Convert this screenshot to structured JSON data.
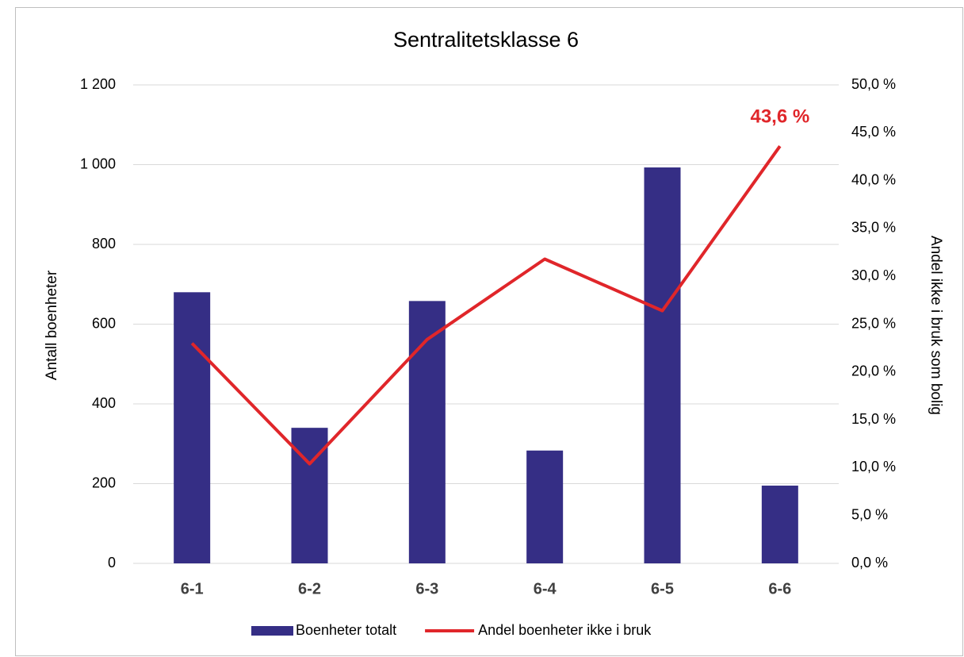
{
  "chart_data": {
    "type": "combo",
    "title": "Sentralitetsklasse 6",
    "categories": [
      "6-1",
      "6-2",
      "6-3",
      "6-4",
      "6-5",
      "6-6"
    ],
    "series": [
      {
        "name": "Boenheter totalt",
        "type": "bar",
        "color": "#352e85",
        "values": [
          680,
          340,
          658,
          283,
          993,
          195
        ]
      },
      {
        "name": "Andel boenheter ikke i bruk",
        "type": "line",
        "axis": "y2",
        "color": "#e0262a",
        "values": [
          23.0,
          10.4,
          23.4,
          31.8,
          26.4,
          43.6
        ],
        "value_labels": [
          null,
          null,
          null,
          null,
          null,
          "43,6 %"
        ]
      }
    ],
    "ylabel": "Antall boenheter",
    "y2label": "Andel ikke i bruk som bolig",
    "ylim": [
      0,
      1200
    ],
    "yticks": [
      0,
      200,
      400,
      600,
      800,
      {
        "value": 1000,
        "label": "1 000"
      },
      {
        "value": 1200,
        "label": "1 200"
      }
    ],
    "y2lim": [
      0,
      50
    ],
    "y2ticks": [
      {
        "value": 0,
        "label": "0,0 %"
      },
      {
        "value": 5,
        "label": "5,0 %"
      },
      {
        "value": 10,
        "label": "10,0 %"
      },
      {
        "value": 15,
        "label": "15,0 %"
      },
      {
        "value": 20,
        "label": "20,0 %"
      },
      {
        "value": 25,
        "label": "25,0 %"
      },
      {
        "value": 30,
        "label": "30,0 %"
      },
      {
        "value": 35,
        "label": "35,0 %"
      },
      {
        "value": 40,
        "label": "40,0 %"
      },
      {
        "value": 45,
        "label": "45,0 %"
      },
      {
        "value": 50,
        "label": "50,0 %"
      }
    ],
    "grid": true,
    "legend": "bottom"
  }
}
